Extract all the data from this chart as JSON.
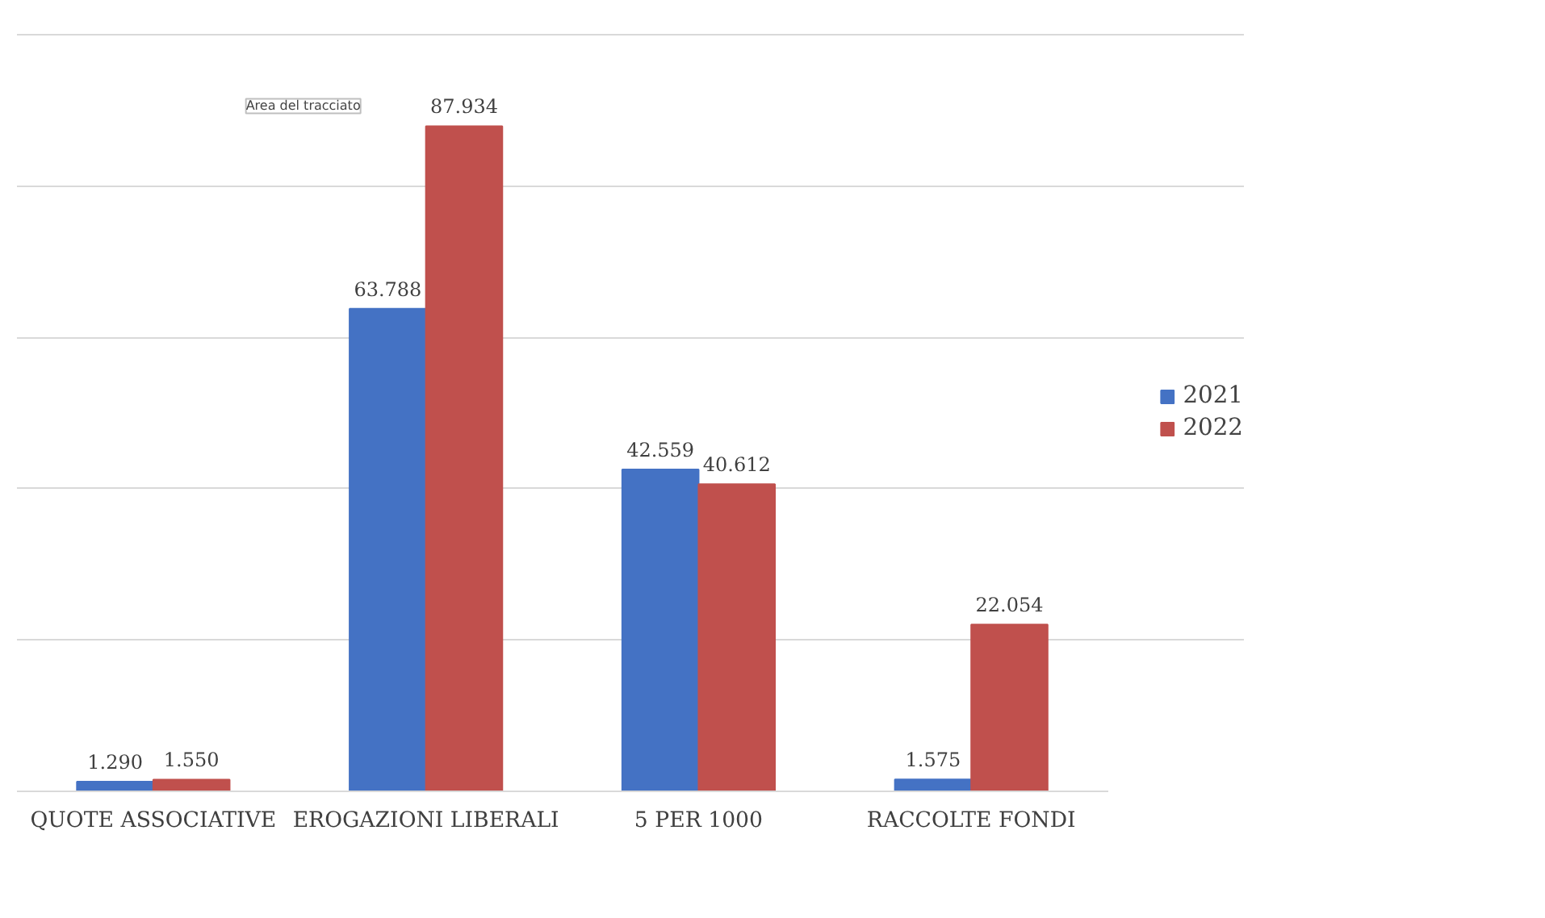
{
  "chart_data": {
    "type": "bar",
    "categories": [
      "QUOTE ASSOCIATIVE",
      "EROGAZIONI LIBERALI",
      "5 PER 1000",
      "RACCOLTE FONDI"
    ],
    "series": [
      {
        "name": "2021",
        "color": "#4472c4",
        "values": [
          1290,
          63788,
          42559,
          1575
        ],
        "value_labels": [
          "1.290",
          "63.788",
          "42.559",
          "1.575"
        ]
      },
      {
        "name": "2022",
        "color": "#c0504d",
        "values": [
          1550,
          87934,
          40612,
          22054
        ],
        "value_labels": [
          "1.550",
          "87.934",
          "40.612",
          "22.054"
        ]
      }
    ],
    "tick_labels": "x",
    "grid": "y",
    "legend": "right",
    "annotations": [
      "Area del tracciato"
    ]
  }
}
